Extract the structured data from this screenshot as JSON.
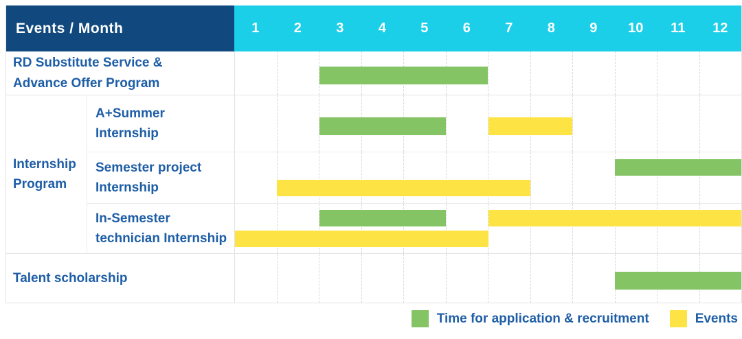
{
  "header": {
    "title": "Events / Month",
    "months": [
      "1",
      "2",
      "3",
      "4",
      "5",
      "6",
      "7",
      "8",
      "9",
      "10",
      "11",
      "12"
    ]
  },
  "legend": {
    "items": [
      {
        "key": "recruitment",
        "label": "Time for application & recruitment",
        "color": "#84c464"
      },
      {
        "key": "events",
        "label": "Events",
        "color": "#fde344"
      }
    ]
  },
  "colors": {
    "header_bg": "#11497e",
    "month_header_bg": "#1bcfe9",
    "recruitment_green": "#84c464",
    "events_yellow": "#fde344",
    "label_text": "#1e5ea6",
    "header_text": "#ffffff"
  },
  "chart_data": {
    "type": "gantt",
    "title": "Events / Month",
    "x_unit": "month",
    "x_range": [
      1,
      12
    ],
    "bar_kinds": {
      "recruitment": "Time for application & recruitment",
      "events": "Events"
    },
    "rows": [
      {
        "id": "rd-substitute",
        "label": "RD Substitute Service &\nAdvance Offer Program",
        "group": null,
        "lines": [
          [
            {
              "kind": "recruitment",
              "start_month": 3,
              "end_month": 6
            }
          ]
        ]
      },
      {
        "id": "a-plus-summer",
        "label": "A+Summer\nInternship",
        "group": "Internship\nProgram",
        "lines": [
          [
            {
              "kind": "recruitment",
              "start_month": 3,
              "end_month": 5
            },
            {
              "kind": "events",
              "start_month": 7,
              "end_month": 8
            }
          ]
        ]
      },
      {
        "id": "semester-project",
        "label": "Semester project\nInternship",
        "group": "Internship\nProgram",
        "lines": [
          [
            {
              "kind": "recruitment",
              "start_month": 10,
              "end_month": 12
            }
          ],
          [
            {
              "kind": "events",
              "start_month": 2,
              "end_month": 7
            }
          ]
        ]
      },
      {
        "id": "in-semester-technician",
        "label": "In-Semester\ntechnician Internship",
        "group": "Internship\nProgram",
        "lines": [
          [
            {
              "kind": "recruitment",
              "start_month": 3,
              "end_month": 5
            },
            {
              "kind": "events",
              "start_month": 7,
              "end_month": 12
            }
          ],
          [
            {
              "kind": "events",
              "start_month": 1,
              "end_month": 6
            }
          ]
        ]
      },
      {
        "id": "talent-scholarship",
        "label": "Talent scholarship",
        "group": null,
        "lines": [
          [
            {
              "kind": "recruitment",
              "start_month": 10,
              "end_month": 12
            }
          ]
        ]
      }
    ]
  }
}
